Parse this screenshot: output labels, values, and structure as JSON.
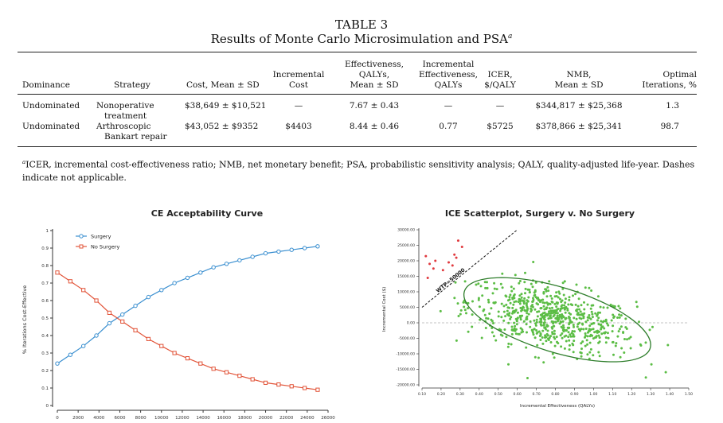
{
  "table": {
    "number": "TABLE 3",
    "caption": "Results of Monte Carlo Microsimulation and PSA",
    "caption_sup": "a",
    "headers": {
      "dominance": "Dominance",
      "strategy": "Strategy",
      "cost": "Cost, Mean ± SD",
      "inc_cost_1": "Incremental",
      "inc_cost_2": "Cost",
      "eff_1": "Effectiveness,",
      "eff_2": "QALYs,",
      "eff_3": "Mean ± SD",
      "inc_eff_1": "Incremental",
      "inc_eff_2": "Effectiveness,",
      "inc_eff_3": "QALYs",
      "icer_1": "ICER,",
      "icer_2": "$/QALY",
      "nmb_1": "NMB,",
      "nmb_2": "Mean ± SD",
      "opt_1": "Optimal",
      "opt_2": "Iterations, %"
    },
    "rows": [
      {
        "dominance": "Undominated",
        "strategy_1": "Nonoperative",
        "strategy_2": "treatment",
        "cost": "$38,649 ± $10,521",
        "inc_cost": "—",
        "eff": "7.67 ± 0.43",
        "inc_eff": "—",
        "icer": "—",
        "nmb": "$344,817 ± $25,368",
        "opt": "1.3"
      },
      {
        "dominance": "Undominated",
        "strategy_1": "Arthroscopic",
        "strategy_2": "Bankart repair",
        "cost": "$43,052 ± $9352",
        "inc_cost": "$4403",
        "eff": "8.44 ± 0.46",
        "inc_eff": "0.77",
        "icer": "$5725",
        "nmb": "$378,866 ± $25,341",
        "opt": "98.7"
      }
    ],
    "footnote_mark": "a",
    "footnote_line1": "ICER, incremental cost-effectiveness ratio; NMB, net monetary benefit; PSA, probabilistic sensitivity analysis; QALY, quality-adjusted life-year. Dashes",
    "footnote_line2": "indicate not applicable."
  },
  "chart_data": [
    {
      "type": "line",
      "title": "CE Acceptability Curve",
      "xlabel": "",
      "ylabel": "% Iterations Cost-Effective",
      "xlim": [
        0,
        26000
      ],
      "ylim": [
        0,
        1
      ],
      "xticks": [
        0,
        2000,
        4000,
        6000,
        8000,
        10000,
        12000,
        14000,
        16000,
        18000,
        20000,
        22000,
        24000,
        26000
      ],
      "yticks": [
        0,
        0.1,
        0.2,
        0.3,
        0.4,
        0.5,
        0.6,
        0.7,
        0.8,
        0.9,
        1
      ],
      "x": [
        0,
        1250,
        2500,
        3750,
        5000,
        6250,
        7500,
        8750,
        10000,
        11250,
        12500,
        13750,
        15000,
        16250,
        17500,
        18750,
        20000,
        21250,
        22500,
        23750,
        25000
      ],
      "series": [
        {
          "name": "Surgery",
          "color": "#3a8fd0",
          "values": [
            0.24,
            0.29,
            0.34,
            0.4,
            0.47,
            0.52,
            0.57,
            0.62,
            0.66,
            0.7,
            0.73,
            0.76,
            0.79,
            0.81,
            0.83,
            0.85,
            0.87,
            0.88,
            0.89,
            0.9,
            0.91
          ]
        },
        {
          "name": "No Surgery",
          "color": "#e2553a",
          "values": [
            0.76,
            0.71,
            0.66,
            0.6,
            0.53,
            0.48,
            0.43,
            0.38,
            0.34,
            0.3,
            0.27,
            0.24,
            0.21,
            0.19,
            0.17,
            0.15,
            0.13,
            0.12,
            0.11,
            0.1,
            0.09
          ]
        }
      ],
      "legend": "top-left"
    },
    {
      "type": "scatter",
      "title": "ICE Scatterplot, Surgery v. No Surgery",
      "xlabel": "Incremental Effectiveness (QALYs)",
      "ylabel": "Incremental Cost ($)",
      "xlim": [
        0.1,
        1.5
      ],
      "ylim": [
        -20000,
        30000
      ],
      "xticks": [
        "0.10",
        "0.20",
        "0.30",
        "0.40",
        "0.50",
        "0.60",
        "0.70",
        "0.80",
        "0.90",
        "1.00",
        "1.10",
        "1.20",
        "1.30",
        "1.40",
        "1.50"
      ],
      "yticks": [
        "-20000.00",
        "-15000.00",
        "-10000.00",
        "-5000.00",
        "0.00",
        "5000.00",
        "10000.00",
        "15000.00",
        "20000.00",
        "25000.00",
        "30000.00"
      ],
      "wtp_label": "WTP=50000",
      "wtp": 50000,
      "ellipse": {
        "center": [
          0.81,
          1000
        ],
        "semi_x": 0.51,
        "semi_y": 10500,
        "rotation_deg": 17
      },
      "cluster": {
        "n": 700,
        "mean_x": 0.78,
        "sd_x": 0.22,
        "mean_y": 1500,
        "sd_y": 5800,
        "corr": -0.45
      },
      "points_above_wtp": [
        [
          0.12,
          21500
        ],
        [
          0.14,
          19000
        ],
        [
          0.13,
          14500
        ],
        [
          0.17,
          20000
        ],
        [
          0.21,
          17000
        ],
        [
          0.24,
          19500
        ],
        [
          0.27,
          22000
        ],
        [
          0.26,
          18500
        ],
        [
          0.28,
          21000
        ],
        [
          0.29,
          26500
        ],
        [
          0.31,
          24500
        ],
        [
          0.16,
          17500
        ]
      ],
      "colors": {
        "inside": "#5bbd45",
        "outside": "#e0393e",
        "ellipse": "#2d7d2a",
        "wtp_line": "#111111"
      }
    }
  ]
}
